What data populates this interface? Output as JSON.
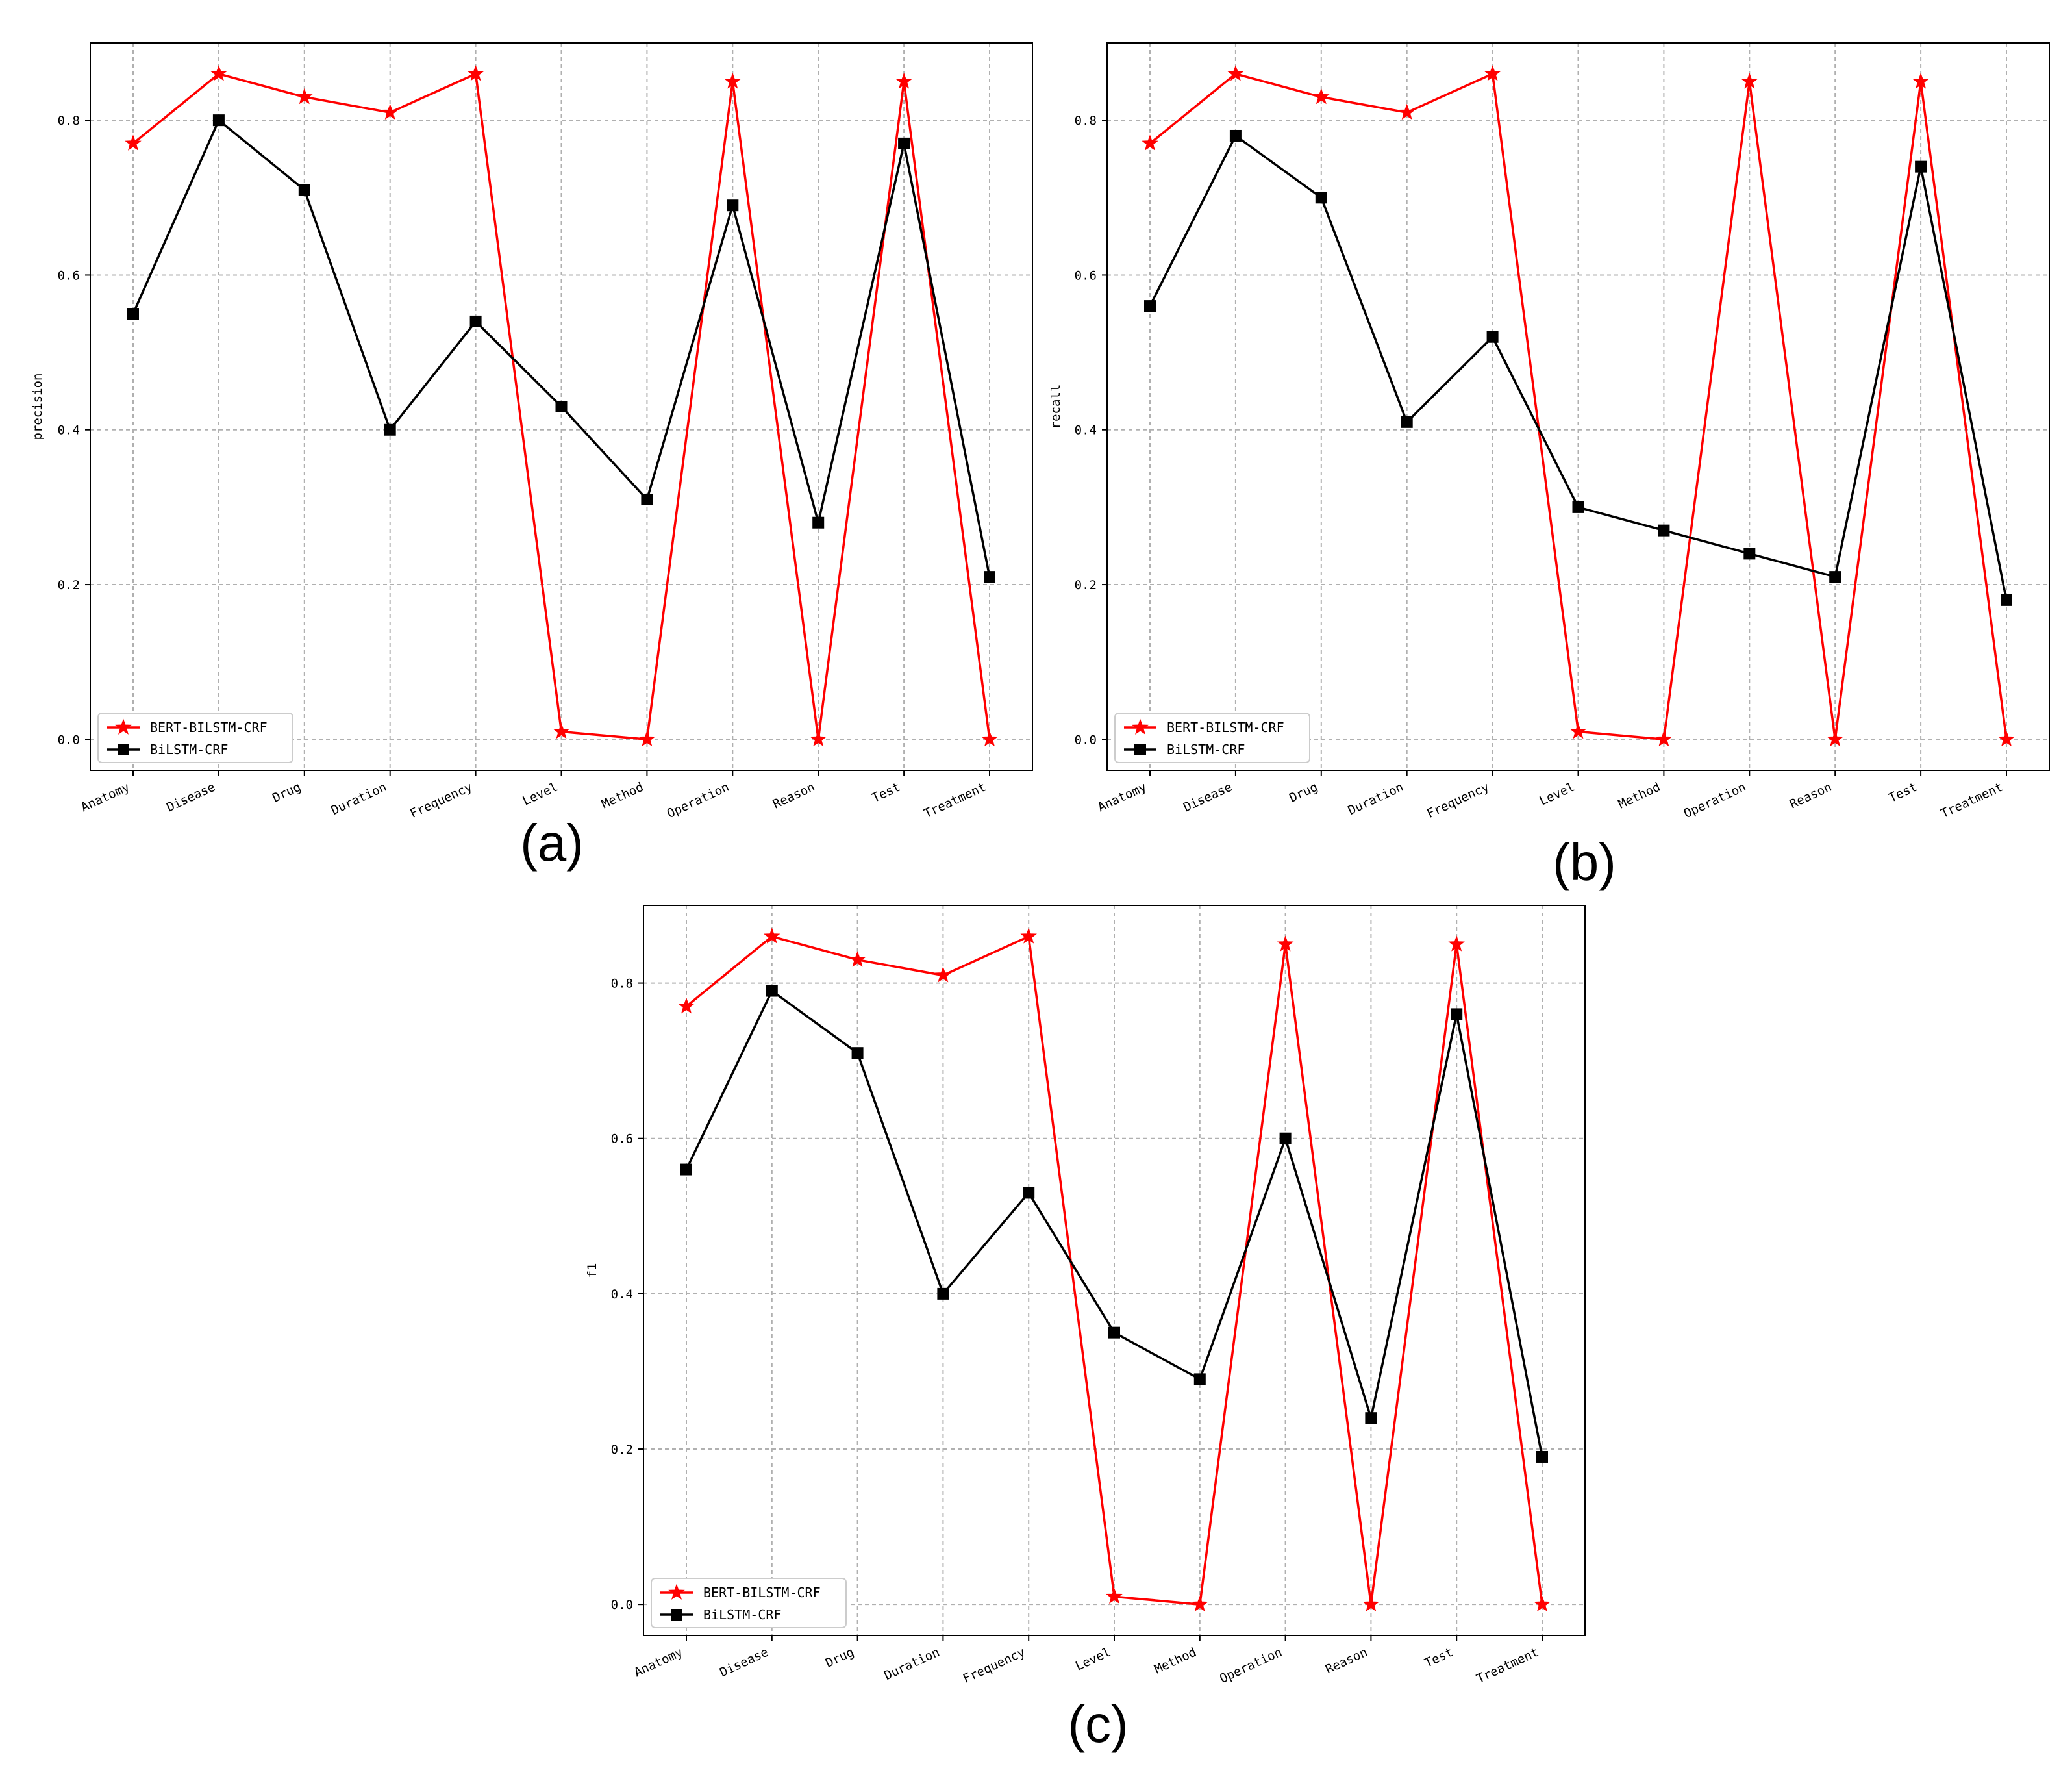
{
  "chart_data": [
    {
      "type": "line",
      "panel_label": "(a)",
      "ylabel": "precision",
      "categories": [
        "Anatomy",
        "Disease",
        "Drug",
        "Duration",
        "Frequency",
        "Level",
        "Method",
        "Operation",
        "Reason",
        "Test",
        "Treatment"
      ],
      "yticks": [
        "0.0",
        "0.2",
        "0.4",
        "0.6",
        "0.8"
      ],
      "ylim": [
        -0.04,
        0.9
      ],
      "grid": true,
      "legend_position": "lower-left",
      "series": [
        {
          "name": "BERT-BILSTM-CRF",
          "color": "#ff0000",
          "marker": "star",
          "values": [
            0.77,
            0.86,
            0.83,
            0.81,
            0.86,
            0.01,
            0.0,
            0.85,
            0.0,
            0.85,
            0.0
          ]
        },
        {
          "name": "BiLSTM-CRF",
          "color": "#000000",
          "marker": "square",
          "values": [
            0.55,
            0.8,
            0.71,
            0.4,
            0.54,
            0.43,
            0.31,
            0.69,
            0.28,
            0.77,
            0.21
          ]
        }
      ]
    },
    {
      "type": "line",
      "panel_label": "(b)",
      "ylabel": "recall",
      "categories": [
        "Anatomy",
        "Disease",
        "Drug",
        "Duration",
        "Frequency",
        "Level",
        "Method",
        "Operation",
        "Reason",
        "Test",
        "Treatment"
      ],
      "yticks": [
        "0.0",
        "0.2",
        "0.4",
        "0.6",
        "0.8"
      ],
      "ylim": [
        -0.04,
        0.9
      ],
      "grid": true,
      "legend_position": "lower-left",
      "series": [
        {
          "name": "BERT-BILSTM-CRF",
          "color": "#ff0000",
          "marker": "star",
          "values": [
            0.77,
            0.86,
            0.83,
            0.81,
            0.86,
            0.01,
            0.0,
            0.85,
            0.0,
            0.85,
            0.0
          ]
        },
        {
          "name": "BiLSTM-CRF",
          "color": "#000000",
          "marker": "square",
          "values": [
            0.56,
            0.78,
            0.7,
            0.41,
            0.52,
            0.3,
            0.27,
            0.24,
            0.21,
            0.74,
            0.18
          ]
        }
      ]
    },
    {
      "type": "line",
      "panel_label": "(c)",
      "ylabel": "f1",
      "categories": [
        "Anatomy",
        "Disease",
        "Drug",
        "Duration",
        "Frequency",
        "Level",
        "Method",
        "Operation",
        "Reason",
        "Test",
        "Treatment"
      ],
      "yticks": [
        "0.0",
        "0.2",
        "0.4",
        "0.6",
        "0.8"
      ],
      "ylim": [
        -0.04,
        0.9
      ],
      "grid": true,
      "legend_position": "lower-left",
      "series": [
        {
          "name": "BERT-BILSTM-CRF",
          "color": "#ff0000",
          "marker": "star",
          "values": [
            0.77,
            0.86,
            0.83,
            0.81,
            0.86,
            0.01,
            0.0,
            0.85,
            0.0,
            0.85,
            0.0
          ]
        },
        {
          "name": "BiLSTM-CRF",
          "color": "#000000",
          "marker": "square",
          "values": [
            0.56,
            0.79,
            0.71,
            0.4,
            0.53,
            0.35,
            0.29,
            0.6,
            0.24,
            0.76,
            0.19
          ]
        }
      ]
    }
  ]
}
